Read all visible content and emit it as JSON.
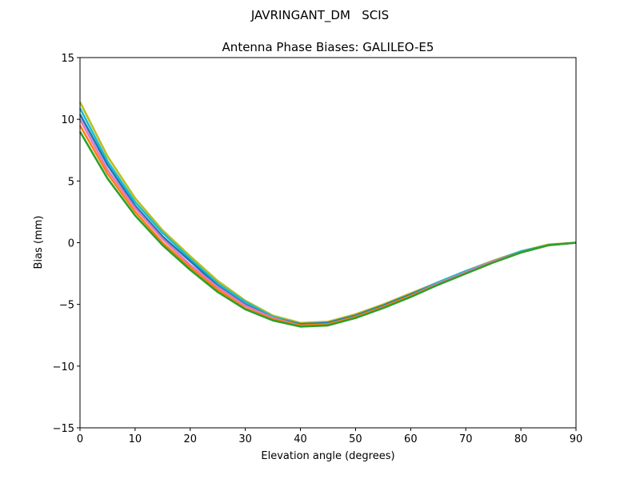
{
  "chart_data": {
    "type": "line",
    "suptitle": "JAVRINGANT_DM   SCIS",
    "title": "Antenna Phase Biases: GALILEO-E5",
    "xlabel": "Elevation angle (degrees)",
    "ylabel": "Bias (mm)",
    "xlim": [
      0,
      90
    ],
    "ylim": [
      -15,
      15
    ],
    "xticks": [
      0,
      10,
      20,
      30,
      40,
      50,
      60,
      70,
      80,
      90
    ],
    "yticks": [
      -15,
      -10,
      -5,
      0,
      5,
      10,
      15
    ],
    "grid": false,
    "x": [
      0,
      5,
      10,
      15,
      20,
      25,
      30,
      35,
      40,
      45,
      50,
      55,
      60,
      65,
      70,
      75,
      80,
      85,
      90
    ],
    "series": [
      {
        "color": "#bcbd22",
        "values": [
          11.4,
          7.0,
          3.6,
          1.0,
          -1.1,
          -3.1,
          -4.7,
          -5.9,
          -6.5,
          -6.4,
          -5.8,
          -5.0,
          -4.1,
          -3.2,
          -2.3,
          -1.45,
          -0.7,
          -0.15,
          0
        ]
      },
      {
        "color": "#17becf",
        "values": [
          10.9,
          6.6,
          3.3,
          0.8,
          -1.3,
          -3.3,
          -4.8,
          -6.0,
          -6.6,
          -6.5,
          -5.9,
          -5.1,
          -4.2,
          -3.2,
          -2.3,
          -1.5,
          -0.7,
          -0.2,
          0
        ]
      },
      {
        "color": "#1f77b4",
        "values": [
          10.4,
          6.3,
          3.0,
          0.5,
          -1.5,
          -3.5,
          -5.0,
          -6.1,
          -6.6,
          -6.5,
          -5.9,
          -5.1,
          -4.2,
          -3.3,
          -2.4,
          -1.5,
          -0.8,
          -0.2,
          0
        ]
      },
      {
        "color": "#e377c2",
        "values": [
          10.0,
          5.9,
          2.8,
          0.3,
          -1.8,
          -3.6,
          -5.1,
          -6.1,
          -6.7,
          -6.6,
          -6.0,
          -5.2,
          -4.3,
          -3.3,
          -2.4,
          -1.5,
          -0.8,
          -0.2,
          0
        ]
      },
      {
        "color": "#ff7f0e",
        "values": [
          9.5,
          5.6,
          2.5,
          0.0,
          -2.0,
          -3.8,
          -5.3,
          -6.2,
          -6.7,
          -6.6,
          -6.0,
          -5.2,
          -4.3,
          -3.4,
          -2.5,
          -1.6,
          -0.8,
          -0.2,
          0
        ]
      },
      {
        "color": "#2ca02c",
        "values": [
          9.0,
          5.2,
          2.2,
          -0.2,
          -2.2,
          -4.0,
          -5.4,
          -6.3,
          -6.8,
          -6.7,
          -6.1,
          -5.3,
          -4.4,
          -3.4,
          -2.5,
          -1.6,
          -0.8,
          -0.2,
          0
        ]
      }
    ]
  }
}
